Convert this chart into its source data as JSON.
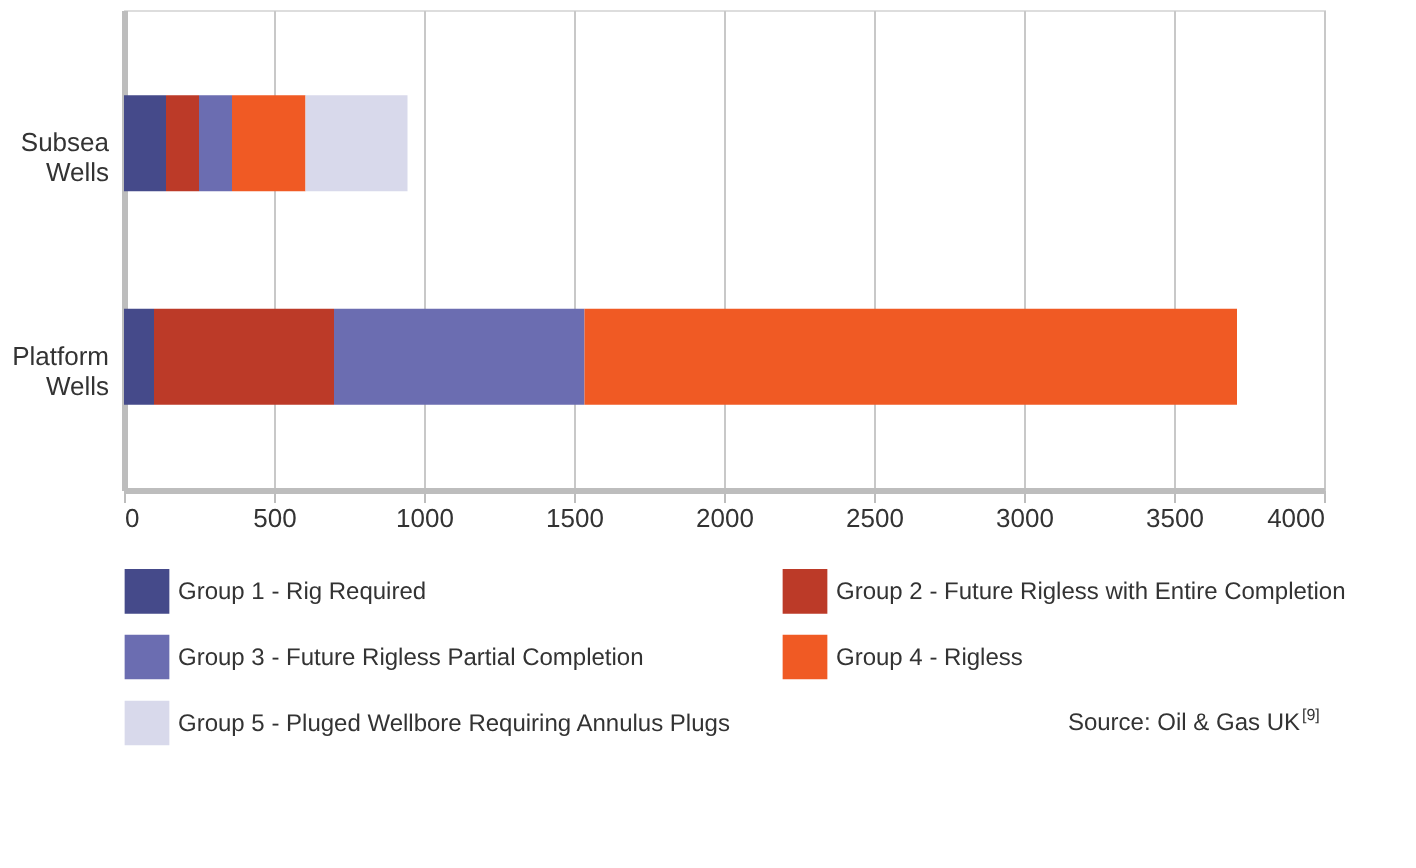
{
  "chart_data": {
    "type": "bar",
    "orientation": "horizontal",
    "stacked": true,
    "categories": [
      "Subsea Wells",
      "Platform Wells"
    ],
    "series": [
      {
        "name": "Group 1 - Rig Required",
        "color": "#454a8a",
        "values": [
          140,
          100
        ]
      },
      {
        "name": "Group 2 - Future Rigless with Entire Completion",
        "color": "#bc3a28",
        "values": [
          110,
          600
        ]
      },
      {
        "name": "Group 3 - Future Rigless Partial Completion",
        "color": "#6b6db1",
        "values": [
          110,
          835
        ]
      },
      {
        "name": "Group 4 - Rigless",
        "color": "#f05a24",
        "values": [
          245,
          2175
        ]
      },
      {
        "name": "Group 5 - Pluged Wellbore Requiring Annulus Plugs",
        "color": "#d8d9eb",
        "values": [
          340,
          0
        ]
      }
    ],
    "xlim": [
      0,
      4000
    ],
    "xticks": [
      0,
      500,
      1000,
      1500,
      2000,
      2500,
      3000,
      3500,
      4000
    ],
    "grid": "x",
    "legend": "bottom",
    "annotations": [
      "Source: Oil & Gas UK$^{[9]}$"
    ]
  }
}
